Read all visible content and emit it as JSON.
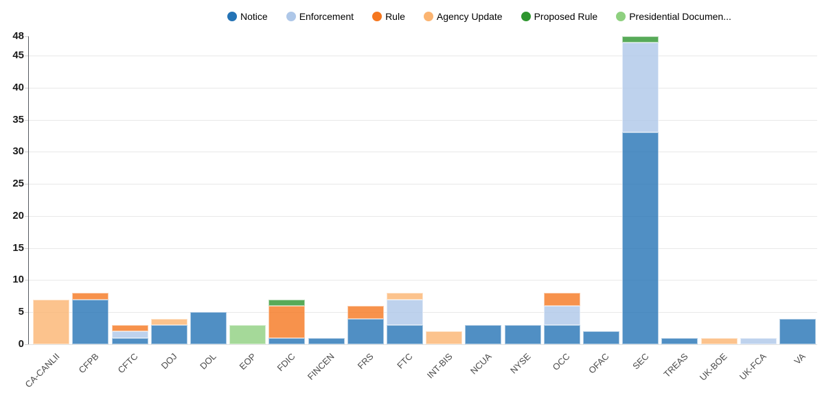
{
  "chart_data": {
    "type": "bar",
    "stacked": true,
    "title": "",
    "xlabel": "",
    "ylabel": "",
    "ylim": [
      0,
      48
    ],
    "y_ticks": [
      0,
      5,
      10,
      15,
      20,
      25,
      30,
      35,
      40,
      45,
      48
    ],
    "grid": true,
    "legend_position": "top",
    "categories": [
      "CA-CANLII",
      "CFPB",
      "CFTC",
      "DOJ",
      "DOL",
      "EOP",
      "FDIC",
      "FINCEN",
      "FRS",
      "FTC",
      "INT-BIS",
      "NCUA",
      "NYSE",
      "OCC",
      "OFAC",
      "SEC",
      "TREAS",
      "UK-BOE",
      "UK-FCA",
      "VA"
    ],
    "series": [
      {
        "name": "Notice",
        "legend_label": "Notice",
        "color": "#2473b5",
        "values": [
          0,
          7,
          1,
          3,
          5,
          0,
          1,
          1,
          4,
          3,
          0,
          3,
          3,
          3,
          2,
          33,
          1,
          0,
          0,
          4
        ]
      },
      {
        "name": "Enforcement",
        "legend_label": "Enforcement",
        "color": "#aec7e8",
        "values": [
          0,
          0,
          1,
          0,
          0,
          0,
          0,
          0,
          0,
          4,
          0,
          0,
          0,
          3,
          0,
          14,
          0,
          0,
          1,
          0
        ]
      },
      {
        "name": "Rule",
        "legend_label": "Rule",
        "color": "#f5771f",
        "values": [
          0,
          1,
          1,
          0,
          0,
          0,
          5,
          0,
          2,
          0,
          0,
          0,
          0,
          2,
          0,
          0,
          0,
          0,
          0,
          0
        ]
      },
      {
        "name": "Agency Update",
        "legend_label": "Agency Update",
        "color": "#fbb471",
        "values": [
          7,
          0,
          0,
          1,
          0,
          0,
          0,
          0,
          0,
          1,
          2,
          0,
          0,
          0,
          0,
          0,
          0,
          1,
          0,
          0
        ]
      },
      {
        "name": "Proposed Rule",
        "legend_label": "Proposed Rule",
        "color": "#2d952e",
        "values": [
          0,
          0,
          0,
          0,
          0,
          0,
          1,
          0,
          0,
          0,
          0,
          0,
          0,
          0,
          0,
          1,
          0,
          0,
          0,
          0
        ]
      },
      {
        "name": "Presidential Document",
        "legend_label": "Presidential Documen...",
        "color": "#8ed07f",
        "values": [
          0,
          0,
          0,
          0,
          0,
          3,
          0,
          0,
          0,
          0,
          0,
          0,
          0,
          0,
          0,
          0,
          0,
          0,
          0,
          0
        ]
      }
    ]
  }
}
